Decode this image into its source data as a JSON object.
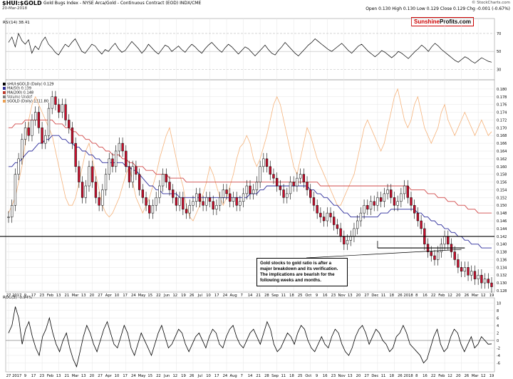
{
  "header": {
    "symbol": "$HUI:$GOLD",
    "subtitle": "Gold Bugs Index - NYSE Arca/Gold - Continuous Contract (EOD) INDX/CME",
    "date": "20-Mar-2018",
    "ohlc": "Open 0.130  High 0.130  Low 0.129  Close 0.129  Chg -0.001 (-0.67%)",
    "copyright": "© StockCharts.com"
  },
  "brand": {
    "part1": "Sunshine",
    "part2": "Profits.com"
  },
  "rsi_label": "RSI(14) 38.41",
  "roc_label": "ROC(3) -0.94%",
  "legend": [
    {
      "text": "$HUI:$GOLD (Daily) 0.129",
      "color": "#000000"
    },
    {
      "text": "MA(50) 0.139",
      "color": "#2b2b9b"
    },
    {
      "text": "MA(200) 0.148",
      "color": "#c0392b"
    },
    {
      "text": "Volume Undef",
      "color": "#7f7f7f"
    },
    {
      "text": "$GOLD (Daily) 1311.80",
      "color": "#f0a050"
    }
  ],
  "annotation": "Gold stocks to gold ratio is after a major breakdown and its verification. The implications are bearish for the following weeks and months.",
  "colors": {
    "up": "#ffffff",
    "down": "#c8102e",
    "ma50": "#2b2b9b",
    "ma200": "#d04848",
    "gold": "#f5b27a",
    "grid": "#e6e6e6"
  },
  "chart_data": [
    {
      "type": "line",
      "title": "RSI(14) 38.41",
      "yticks": [
        30,
        50,
        70
      ],
      "ylim": [
        20,
        85
      ],
      "values": [
        60,
        66,
        55,
        70,
        62,
        58,
        63,
        48,
        56,
        52,
        61,
        66,
        58,
        54,
        49,
        46,
        52,
        58,
        55,
        60,
        64,
        57,
        50,
        48,
        53,
        58,
        56,
        51,
        47,
        52,
        50,
        55,
        59,
        53,
        49,
        51,
        56,
        61,
        57,
        53,
        48,
        52,
        58,
        54,
        50,
        47,
        52,
        57,
        55,
        50,
        53,
        56,
        52,
        49,
        54,
        58,
        55,
        51,
        48,
        53,
        57,
        60,
        56,
        52,
        49,
        54,
        58,
        55,
        51,
        47,
        51,
        55,
        53,
        49,
        45,
        49,
        53,
        57,
        52,
        48,
        46,
        51,
        55,
        60,
        56,
        52,
        48,
        45,
        49,
        53,
        57,
        60,
        64,
        61,
        58,
        55,
        52,
        50,
        53,
        56,
        59,
        55,
        51,
        48,
        52,
        56,
        58,
        54,
        50,
        47,
        44,
        47,
        51,
        49,
        46,
        43,
        46,
        50,
        48,
        45,
        42,
        46,
        50,
        53,
        57,
        54,
        50,
        55,
        59,
        56,
        52,
        49,
        46,
        43,
        40,
        38,
        41,
        44,
        42,
        39,
        37,
        40,
        43,
        41,
        39,
        38
      ]
    },
    {
      "type": "candlestick",
      "title": "$HUI:$GOLD (Daily) 0.129",
      "ylim": [
        0.128,
        0.182
      ],
      "yticks": [
        0.128,
        0.13,
        0.132,
        0.134,
        0.136,
        0.138,
        0.14,
        0.142,
        0.144,
        0.146,
        0.148,
        0.15,
        0.152,
        0.154,
        0.156,
        0.158,
        0.16,
        0.162,
        0.164,
        0.166,
        0.168,
        0.17,
        0.172,
        0.174,
        0.176,
        0.178,
        0.18
      ],
      "x_ticks": [
        "27",
        "2017",
        "9",
        "17",
        "23",
        "Feb",
        "13",
        "21",
        "Mar",
        "13",
        "20",
        "27",
        "Apr",
        "10",
        "17",
        "24",
        "May",
        "15",
        "22",
        "Jun",
        "12",
        "19",
        "26",
        "Jul",
        "10",
        "17",
        "24",
        "Aug",
        "7",
        "14",
        "21",
        "28",
        "Sep",
        "11",
        "18",
        "25",
        "Oct",
        "9",
        "16",
        "23",
        "Nov",
        "13",
        "20",
        "27",
        "Dec",
        "11",
        "18",
        "26",
        "2018",
        "8",
        "16",
        "22",
        "Feb",
        "12",
        "20",
        "26",
        "Mar",
        "12",
        "19"
      ],
      "close": [
        0.147,
        0.15,
        0.158,
        0.162,
        0.167,
        0.17,
        0.168,
        0.172,
        0.174,
        0.17,
        0.166,
        0.168,
        0.175,
        0.178,
        0.176,
        0.174,
        0.176,
        0.172,
        0.17,
        0.166,
        0.16,
        0.156,
        0.152,
        0.155,
        0.16,
        0.156,
        0.152,
        0.15,
        0.154,
        0.158,
        0.162,
        0.16,
        0.164,
        0.166,
        0.164,
        0.16,
        0.156,
        0.16,
        0.158,
        0.154,
        0.152,
        0.15,
        0.148,
        0.15,
        0.152,
        0.155,
        0.158,
        0.156,
        0.154,
        0.152,
        0.15,
        0.152,
        0.149,
        0.148,
        0.15,
        0.151,
        0.153,
        0.151,
        0.15,
        0.152,
        0.151,
        0.149,
        0.15,
        0.152,
        0.154,
        0.153,
        0.151,
        0.152,
        0.15,
        0.151,
        0.153,
        0.155,
        0.153,
        0.154,
        0.156,
        0.16,
        0.162,
        0.16,
        0.158,
        0.157,
        0.155,
        0.154,
        0.152,
        0.153,
        0.156,
        0.155,
        0.157,
        0.158,
        0.156,
        0.154,
        0.152,
        0.15,
        0.148,
        0.147,
        0.146,
        0.148,
        0.147,
        0.145,
        0.144,
        0.142,
        0.14,
        0.141,
        0.142,
        0.144,
        0.146,
        0.148,
        0.15,
        0.149,
        0.151,
        0.15,
        0.152,
        0.151,
        0.153,
        0.154,
        0.152,
        0.15,
        0.151,
        0.153,
        0.155,
        0.152,
        0.15,
        0.148,
        0.146,
        0.144,
        0.14,
        0.138,
        0.137,
        0.136,
        0.138,
        0.14,
        0.142,
        0.14,
        0.138,
        0.136,
        0.134,
        0.133,
        0.134,
        0.132,
        0.133,
        0.131,
        0.132,
        0.13,
        0.131,
        0.13,
        0.129
      ],
      "ma50": [
        0.16,
        0.16,
        0.161,
        0.161,
        0.162,
        0.163,
        0.164,
        0.164,
        0.165,
        0.166,
        0.166,
        0.167,
        0.167,
        0.168,
        0.168,
        0.168,
        0.167,
        0.167,
        0.166,
        0.166,
        0.165,
        0.165,
        0.164,
        0.164,
        0.163,
        0.163,
        0.162,
        0.162,
        0.161,
        0.161,
        0.161,
        0.161,
        0.161,
        0.161,
        0.161,
        0.16,
        0.16,
        0.159,
        0.159,
        0.158,
        0.157,
        0.156,
        0.155,
        0.155,
        0.154,
        0.154,
        0.153,
        0.153,
        0.153,
        0.153,
        0.153,
        0.152,
        0.152,
        0.152,
        0.152,
        0.152,
        0.152,
        0.152,
        0.152,
        0.152,
        0.152,
        0.152,
        0.152,
        0.152,
        0.152,
        0.152,
        0.152,
        0.152,
        0.152,
        0.152,
        0.152,
        0.152,
        0.153,
        0.153,
        0.153,
        0.154,
        0.154,
        0.155,
        0.155,
        0.155,
        0.155,
        0.155,
        0.155,
        0.155,
        0.155,
        0.155,
        0.155,
        0.155,
        0.155,
        0.155,
        0.154,
        0.154,
        0.153,
        0.153,
        0.152,
        0.152,
        0.151,
        0.15,
        0.15,
        0.149,
        0.148,
        0.148,
        0.147,
        0.147,
        0.147,
        0.147,
        0.147,
        0.147,
        0.147,
        0.147,
        0.147,
        0.148,
        0.148,
        0.148,
        0.149,
        0.149,
        0.149,
        0.149,
        0.149,
        0.149,
        0.149,
        0.149,
        0.148,
        0.148,
        0.147,
        0.147,
        0.146,
        0.146,
        0.145,
        0.145,
        0.144,
        0.144,
        0.143,
        0.143,
        0.142,
        0.142,
        0.141,
        0.141,
        0.14,
        0.14,
        0.14,
        0.139,
        0.139,
        0.139,
        0.139
      ],
      "ma200": [
        0.17,
        0.17,
        0.171,
        0.171,
        0.171,
        0.172,
        0.172,
        0.172,
        0.172,
        0.172,
        0.172,
        0.172,
        0.172,
        0.172,
        0.171,
        0.171,
        0.171,
        0.17,
        0.17,
        0.169,
        0.169,
        0.168,
        0.168,
        0.167,
        0.167,
        0.166,
        0.166,
        0.165,
        0.165,
        0.164,
        0.164,
        0.163,
        0.163,
        0.163,
        0.162,
        0.162,
        0.161,
        0.161,
        0.16,
        0.16,
        0.16,
        0.159,
        0.159,
        0.159,
        0.158,
        0.158,
        0.158,
        0.158,
        0.157,
        0.157,
        0.157,
        0.157,
        0.157,
        0.156,
        0.156,
        0.156,
        0.156,
        0.156,
        0.156,
        0.156,
        0.156,
        0.156,
        0.156,
        0.156,
        0.156,
        0.156,
        0.156,
        0.156,
        0.156,
        0.156,
        0.156,
        0.156,
        0.156,
        0.156,
        0.156,
        0.156,
        0.156,
        0.156,
        0.156,
        0.156,
        0.156,
        0.156,
        0.156,
        0.156,
        0.156,
        0.156,
        0.156,
        0.156,
        0.156,
        0.156,
        0.156,
        0.156,
        0.156,
        0.155,
        0.155,
        0.155,
        0.155,
        0.155,
        0.155,
        0.155,
        0.155,
        0.155,
        0.155,
        0.155,
        0.155,
        0.155,
        0.155,
        0.155,
        0.155,
        0.155,
        0.155,
        0.155,
        0.155,
        0.155,
        0.155,
        0.155,
        0.155,
        0.155,
        0.155,
        0.155,
        0.154,
        0.154,
        0.154,
        0.154,
        0.154,
        0.153,
        0.153,
        0.153,
        0.152,
        0.152,
        0.152,
        0.151,
        0.151,
        0.151,
        0.15,
        0.15,
        0.15,
        0.149,
        0.149,
        0.149,
        0.148,
        0.148,
        0.148,
        0.148,
        0.148
      ],
      "gold": [
        0.148,
        0.15,
        0.152,
        0.156,
        0.16,
        0.166,
        0.172,
        0.176,
        0.178,
        0.176,
        0.174,
        0.172,
        0.17,
        0.168,
        0.164,
        0.16,
        0.156,
        0.152,
        0.15,
        0.15,
        0.152,
        0.156,
        0.16,
        0.164,
        0.166,
        0.162,
        0.158,
        0.154,
        0.15,
        0.148,
        0.147,
        0.148,
        0.15,
        0.152,
        0.155,
        0.158,
        0.16,
        0.156,
        0.152,
        0.15,
        0.148,
        0.15,
        0.152,
        0.155,
        0.158,
        0.162,
        0.165,
        0.168,
        0.17,
        0.166,
        0.162,
        0.158,
        0.155,
        0.15,
        0.147,
        0.146,
        0.148,
        0.15,
        0.153,
        0.156,
        0.16,
        0.158,
        0.155,
        0.152,
        0.15,
        0.152,
        0.155,
        0.158,
        0.162,
        0.165,
        0.166,
        0.168,
        0.166,
        0.162,
        0.16,
        0.162,
        0.165,
        0.168,
        0.172,
        0.176,
        0.178,
        0.176,
        0.172,
        0.168,
        0.164,
        0.16,
        0.158,
        0.162,
        0.166,
        0.17,
        0.168,
        0.165,
        0.162,
        0.16,
        0.158,
        0.156,
        0.154,
        0.152,
        0.15,
        0.15,
        0.152,
        0.154,
        0.156,
        0.158,
        0.162,
        0.166,
        0.17,
        0.172,
        0.17,
        0.168,
        0.166,
        0.164,
        0.166,
        0.17,
        0.174,
        0.178,
        0.18,
        0.176,
        0.172,
        0.17,
        0.172,
        0.176,
        0.178,
        0.174,
        0.17,
        0.168,
        0.166,
        0.168,
        0.17,
        0.174,
        0.176,
        0.172,
        0.17,
        0.168,
        0.17,
        0.172,
        0.174,
        0.172,
        0.17,
        0.168,
        0.17,
        0.172,
        0.17,
        0.168,
        0.169
      ],
      "breakdown_level": 0.142,
      "support_level": 0.139
    },
    {
      "type": "line",
      "title": "ROC(3) -0.94%",
      "yticks": [
        -6,
        -4,
        -2,
        0,
        2,
        4,
        6,
        8,
        10
      ],
      "ylim": [
        -8,
        11
      ],
      "values": [
        2,
        4,
        9,
        6,
        -1,
        3,
        5,
        1,
        -2,
        -4,
        1,
        3,
        6,
        2,
        -1,
        -3,
        0,
        2,
        -2,
        -5,
        -7,
        -3,
        1,
        4,
        2,
        -1,
        -3,
        0,
        3,
        5,
        2,
        -1,
        -2,
        1,
        4,
        2,
        -2,
        -4,
        -1,
        2,
        0,
        -2,
        -4,
        -1,
        2,
        4,
        1,
        -2,
        -1,
        1,
        3,
        2,
        -1,
        -3,
        -1,
        1,
        2,
        0,
        -2,
        1,
        3,
        2,
        -1,
        -2,
        1,
        3,
        4,
        1,
        -1,
        -2,
        0,
        2,
        3,
        1,
        -1,
        2,
        5,
        3,
        -1,
        -3,
        -2,
        0,
        2,
        1,
        -1,
        2,
        4,
        3,
        0,
        -2,
        -3,
        -1,
        1,
        -1,
        -2,
        1,
        3,
        2,
        -1,
        -3,
        -4,
        -2,
        1,
        3,
        4,
        2,
        -1,
        1,
        3,
        2,
        0,
        -1,
        -3,
        -2,
        1,
        2,
        4,
        2,
        -1,
        -2,
        -3,
        -4,
        -6,
        -5,
        -2,
        1,
        3,
        -1,
        -3,
        -2,
        1,
        3,
        2,
        -1,
        -3,
        -1,
        1,
        -2,
        -1,
        1,
        0,
        -1,
        -0.94
      ]
    }
  ]
}
